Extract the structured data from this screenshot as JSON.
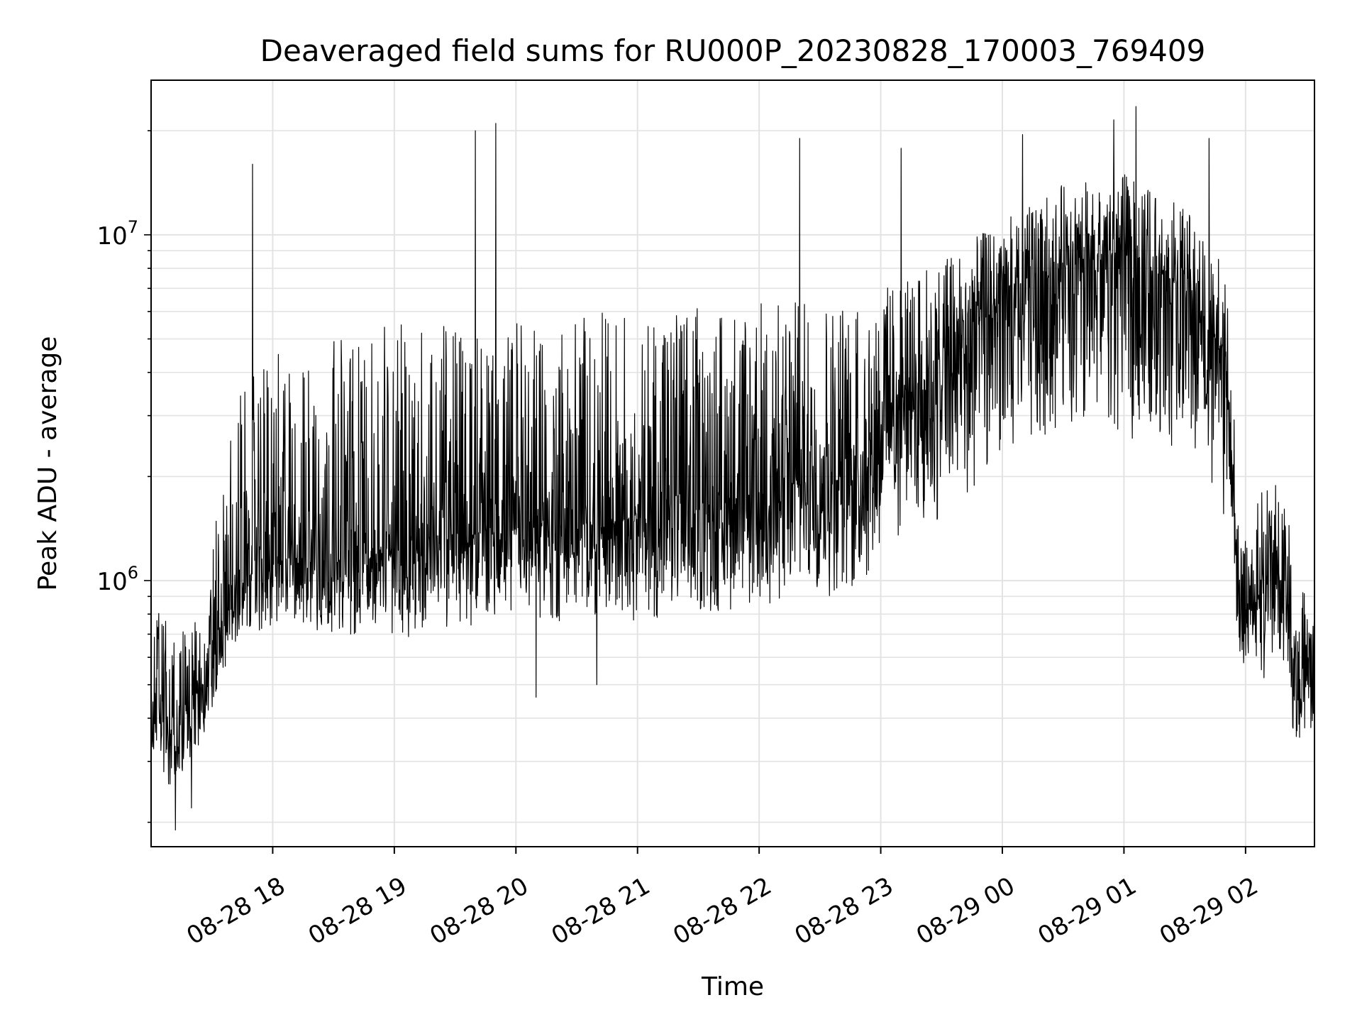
{
  "chart_data": {
    "type": "line",
    "title": "Deaveraged field sums for RU000P_20230828_170003_769409",
    "xlabel": "Time",
    "ylabel": "Peak ADU - average",
    "y_scale": "log",
    "ylim": [
      170000,
      28000000
    ],
    "xlim": [
      "2023-08-28 17:00",
      "2023-08-29 02:34"
    ],
    "grid": true,
    "x_ticks": [
      {
        "label": "08-28 18",
        "time": "2023-08-28 18:00"
      },
      {
        "label": "08-28 19",
        "time": "2023-08-28 19:00"
      },
      {
        "label": "08-28 20",
        "time": "2023-08-28 20:00"
      },
      {
        "label": "08-28 21",
        "time": "2023-08-28 21:00"
      },
      {
        "label": "08-28 22",
        "time": "2023-08-28 22:00"
      },
      {
        "label": "08-28 23",
        "time": "2023-08-28 23:00"
      },
      {
        "label": "08-29 00",
        "time": "2023-08-29 00:00"
      },
      {
        "label": "08-29 01",
        "time": "2023-08-29 01:00"
      },
      {
        "label": "08-29 02",
        "time": "2023-08-29 02:00"
      }
    ],
    "y_ticks": [
      {
        "value": 1000000,
        "base": "10",
        "exp": "6"
      },
      {
        "value": 10000000,
        "base": "10",
        "exp": "7"
      }
    ],
    "series": [
      {
        "color": "#000000",
        "envelope": [
          {
            "time": "2023-08-28 17:00",
            "low": 330000,
            "mid": 420000,
            "high": 1050000
          },
          {
            "time": "2023-08-28 17:10",
            "low": 230000,
            "mid": 360000,
            "high": 700000
          },
          {
            "time": "2023-08-28 17:25",
            "low": 330000,
            "mid": 480000,
            "high": 800000
          },
          {
            "time": "2023-08-28 17:38",
            "low": 600000,
            "mid": 800000,
            "high": 2500000
          },
          {
            "time": "2023-08-28 17:45",
            "low": 650000,
            "mid": 1000000,
            "high": 4000000
          },
          {
            "time": "2023-08-28 18:00",
            "low": 700000,
            "mid": 1150000,
            "high": 4500000
          },
          {
            "time": "2023-08-28 18:30",
            "low": 700000,
            "mid": 1150000,
            "high": 5000000
          },
          {
            "time": "2023-08-28 19:00",
            "low": 680000,
            "mid": 1250000,
            "high": 5500000
          },
          {
            "time": "2023-08-28 20:00",
            "low": 730000,
            "mid": 1400000,
            "high": 6000000
          },
          {
            "time": "2023-08-28 21:00",
            "low": 760000,
            "mid": 1500000,
            "high": 6000000
          },
          {
            "time": "2023-08-28 22:00",
            "low": 820000,
            "mid": 1700000,
            "high": 6500000
          },
          {
            "time": "2023-08-28 22:50",
            "low": 900000,
            "mid": 2200000,
            "high": 6500000
          },
          {
            "time": "2023-08-28 23:00",
            "low": 1200000,
            "mid": 3000000,
            "high": 7000000
          },
          {
            "time": "2023-08-28 23:30",
            "low": 1500000,
            "mid": 4200000,
            "high": 8500000
          },
          {
            "time": "2023-08-29 00:00",
            "low": 2100000,
            "mid": 6500000,
            "high": 11000000
          },
          {
            "time": "2023-08-29 00:30",
            "low": 2500000,
            "mid": 8000000,
            "high": 14000000
          },
          {
            "time": "2023-08-29 01:00",
            "low": 2500000,
            "mid": 9000000,
            "high": 15000000
          },
          {
            "time": "2023-08-29 01:30",
            "low": 2200000,
            "mid": 7000000,
            "high": 12000000
          },
          {
            "time": "2023-08-29 01:50",
            "low": 1500000,
            "mid": 4500000,
            "high": 9000000
          },
          {
            "time": "2023-08-29 01:58",
            "low": 500000,
            "mid": 700000,
            "high": 1200000
          },
          {
            "time": "2023-08-29 02:10",
            "low": 500000,
            "mid": 1000000,
            "high": 2000000
          },
          {
            "time": "2023-08-29 02:20",
            "low": 600000,
            "mid": 1000000,
            "high": 1900000
          },
          {
            "time": "2023-08-29 02:24",
            "low": 330000,
            "mid": 550000,
            "high": 900000
          },
          {
            "time": "2023-08-29 02:34",
            "low": 300000,
            "mid": 520000,
            "high": 1000000
          }
        ],
        "spikes": [
          {
            "time": "2023-08-28 17:50",
            "value": 16000000
          },
          {
            "time": "2023-08-28 19:40",
            "value": 20000000
          },
          {
            "time": "2023-08-28 19:50",
            "value": 21000000
          },
          {
            "time": "2023-08-28 22:20",
            "value": 19000000
          },
          {
            "time": "2023-08-28 23:10",
            "value": 17800000
          },
          {
            "time": "2023-08-29 00:10",
            "value": 19500000
          },
          {
            "time": "2023-08-29 00:55",
            "value": 21500000
          },
          {
            "time": "2023-08-29 01:06",
            "value": 23500000
          },
          {
            "time": "2023-08-29 01:42",
            "value": 19000000
          },
          {
            "time": "2023-08-28 20:40",
            "value": 500000
          },
          {
            "time": "2023-08-28 20:10",
            "value": 460000
          },
          {
            "time": "2023-08-28 17:12",
            "value": 190000
          },
          {
            "time": "2023-08-28 17:20",
            "value": 220000
          }
        ]
      }
    ]
  }
}
